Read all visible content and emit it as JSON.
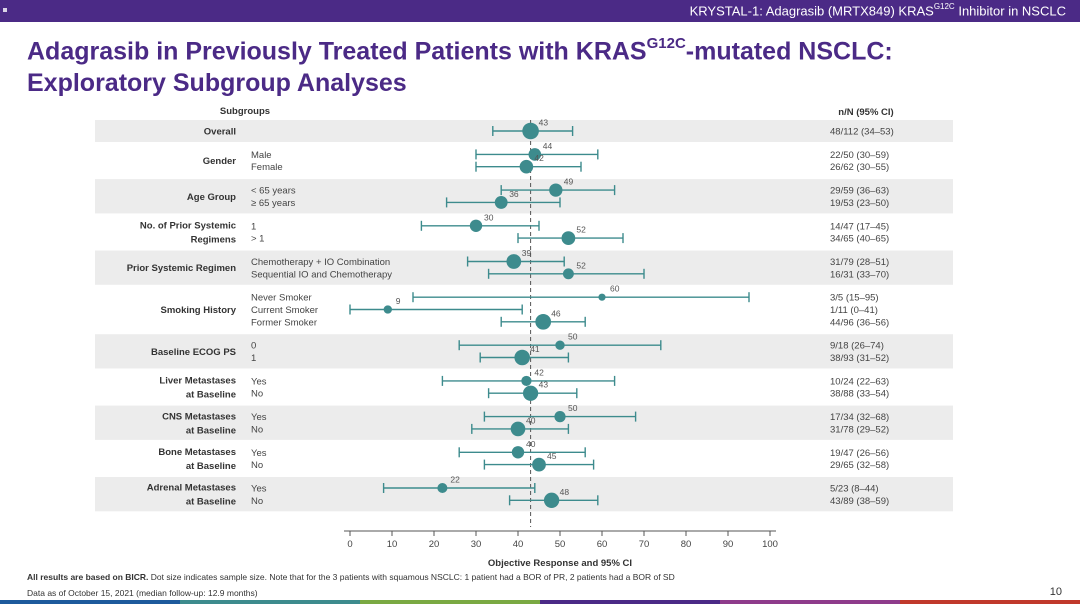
{
  "header": {
    "banner_prefix": "KRYSTAL-1: Adagrasib (MRTX849) KRAS",
    "banner_sup": "G12C",
    "banner_suffix": " Inhibitor in NSCLC"
  },
  "title": {
    "line1_prefix": "Adagrasib in Previously Treated Patients with KRAS",
    "line1_sup": "G12C",
    "line1_suffix": "-mutated NSCLC:",
    "line2": "Exploratory Subgroup Analyses"
  },
  "chart_data": {
    "type": "forest",
    "subgroups_header": "Subgroups",
    "nn_header": "n/N (95% CI)",
    "xlabel": "Objective Response and 95% CI",
    "xlim": [
      0,
      100
    ],
    "xticks": [
      0,
      10,
      20,
      30,
      40,
      50,
      60,
      70,
      80,
      90,
      100
    ],
    "reference_line": 43,
    "groups": [
      {
        "name_lines": [
          "Overall"
        ],
        "rows": [
          {
            "label": "",
            "orr": 43,
            "ci": [
              34,
              53
            ],
            "n": 48,
            "N": 112,
            "nn_text": "48/112 (34–53)"
          }
        ]
      },
      {
        "name_lines": [
          "Gender"
        ],
        "rows": [
          {
            "label": "Male",
            "orr": 44,
            "ci": [
              30,
              59
            ],
            "n": 22,
            "N": 50,
            "nn_text": "22/50 (30–59)"
          },
          {
            "label": "Female",
            "orr": 42,
            "ci": [
              30,
              55
            ],
            "n": 26,
            "N": 62,
            "nn_text": "26/62 (30–55)"
          }
        ]
      },
      {
        "name_lines": [
          "Age Group"
        ],
        "rows": [
          {
            "label": "< 65 years",
            "orr": 49,
            "ci": [
              36,
              63
            ],
            "n": 29,
            "N": 59,
            "nn_text": "29/59 (36–63)"
          },
          {
            "label": "≥ 65 years",
            "orr": 36,
            "ci": [
              23,
              50
            ],
            "n": 19,
            "N": 53,
            "nn_text": "19/53 (23–50)"
          }
        ]
      },
      {
        "name_lines": [
          "No. of Prior Systemic",
          "Regimens"
        ],
        "rows": [
          {
            "label": "1",
            "orr": 30,
            "ci": [
              17,
              45
            ],
            "n": 14,
            "N": 47,
            "nn_text": "14/47 (17–45)"
          },
          {
            "label": "> 1",
            "orr": 52,
            "ci": [
              40,
              65
            ],
            "n": 34,
            "N": 65,
            "nn_text": "34/65 (40–65)"
          }
        ]
      },
      {
        "name_lines": [
          "Prior Systemic Regimen"
        ],
        "rows": [
          {
            "label": "Chemotherapy + IO Combination",
            "orr": 39,
            "ci": [
              28,
              51
            ],
            "n": 31,
            "N": 79,
            "nn_text": "31/79 (28–51)"
          },
          {
            "label": "Sequential IO and Chemotherapy",
            "orr": 52,
            "ci": [
              33,
              70
            ],
            "n": 16,
            "N": 31,
            "nn_text": "16/31 (33–70)"
          }
        ]
      },
      {
        "name_lines": [
          "Smoking History"
        ],
        "rows": [
          {
            "label": "Never Smoker",
            "orr": 60,
            "ci": [
              15,
              95
            ],
            "n": 3,
            "N": 5,
            "nn_text": "3/5 (15–95)"
          },
          {
            "label": "Current Smoker",
            "orr": 9,
            "ci": [
              0,
              41
            ],
            "n": 1,
            "N": 11,
            "nn_text": "1/11 (0–41)"
          },
          {
            "label": "Former Smoker",
            "orr": 46,
            "ci": [
              36,
              56
            ],
            "n": 44,
            "N": 96,
            "nn_text": "44/96 (36–56)"
          }
        ]
      },
      {
        "name_lines": [
          "Baseline ECOG PS"
        ],
        "rows": [
          {
            "label": "0",
            "orr": 50,
            "ci": [
              26,
              74
            ],
            "n": 9,
            "N": 18,
            "nn_text": "9/18 (26–74)"
          },
          {
            "label": "1",
            "orr": 41,
            "ci": [
              31,
              52
            ],
            "n": 38,
            "N": 93,
            "nn_text": "38/93 (31–52)"
          }
        ]
      },
      {
        "name_lines": [
          "Liver Metastases",
          "at Baseline"
        ],
        "rows": [
          {
            "label": "Yes",
            "orr": 42,
            "ci": [
              22,
              63
            ],
            "n": 10,
            "N": 24,
            "nn_text": "10/24 (22–63)"
          },
          {
            "label": "No",
            "orr": 43,
            "ci": [
              33,
              54
            ],
            "n": 38,
            "N": 88,
            "nn_text": "38/88 (33–54)"
          }
        ]
      },
      {
        "name_lines": [
          "CNS Metastases",
          "at Baseline"
        ],
        "rows": [
          {
            "label": "Yes",
            "orr": 50,
            "ci": [
              32,
              68
            ],
            "n": 17,
            "N": 34,
            "nn_text": "17/34 (32–68)"
          },
          {
            "label": "No",
            "orr": 40,
            "ci": [
              29,
              52
            ],
            "n": 31,
            "N": 78,
            "nn_text": "31/78 (29–52)"
          }
        ]
      },
      {
        "name_lines": [
          "Bone Metastases",
          "at Baseline"
        ],
        "rows": [
          {
            "label": "Yes",
            "orr": 40,
            "ci": [
              26,
              56
            ],
            "n": 19,
            "N": 47,
            "nn_text": "19/47 (26–56)"
          },
          {
            "label": "No",
            "orr": 45,
            "ci": [
              32,
              58
            ],
            "n": 29,
            "N": 65,
            "nn_text": "29/65 (32–58)"
          }
        ]
      },
      {
        "name_lines": [
          "Adrenal Metastases",
          "at Baseline"
        ],
        "rows": [
          {
            "label": "Yes",
            "orr": 22,
            "ci": [
              8,
              44
            ],
            "n": 5,
            "N": 23,
            "nn_text": "5/23 (8–44)"
          },
          {
            "label": "No",
            "orr": 48,
            "ci": [
              38,
              59
            ],
            "n": 43,
            "N": 89,
            "nn_text": "43/89 (38–59)"
          }
        ]
      }
    ]
  },
  "footer": {
    "note_bold": "All results are based on BICR.",
    "note_rest": " Dot size indicates sample size. Note that for the 3 patients with squamous NSCLC: 1 patient had a BOR of PR, 2 patients had a BOR of SD",
    "date": "Data as of October 15, 2021 (median follow-up: 12.9 months)",
    "page": "10"
  },
  "colors": {
    "brand": "#4b2a86",
    "marker": "#3d8b8d",
    "band": "#ececec",
    "text": "#333333"
  }
}
